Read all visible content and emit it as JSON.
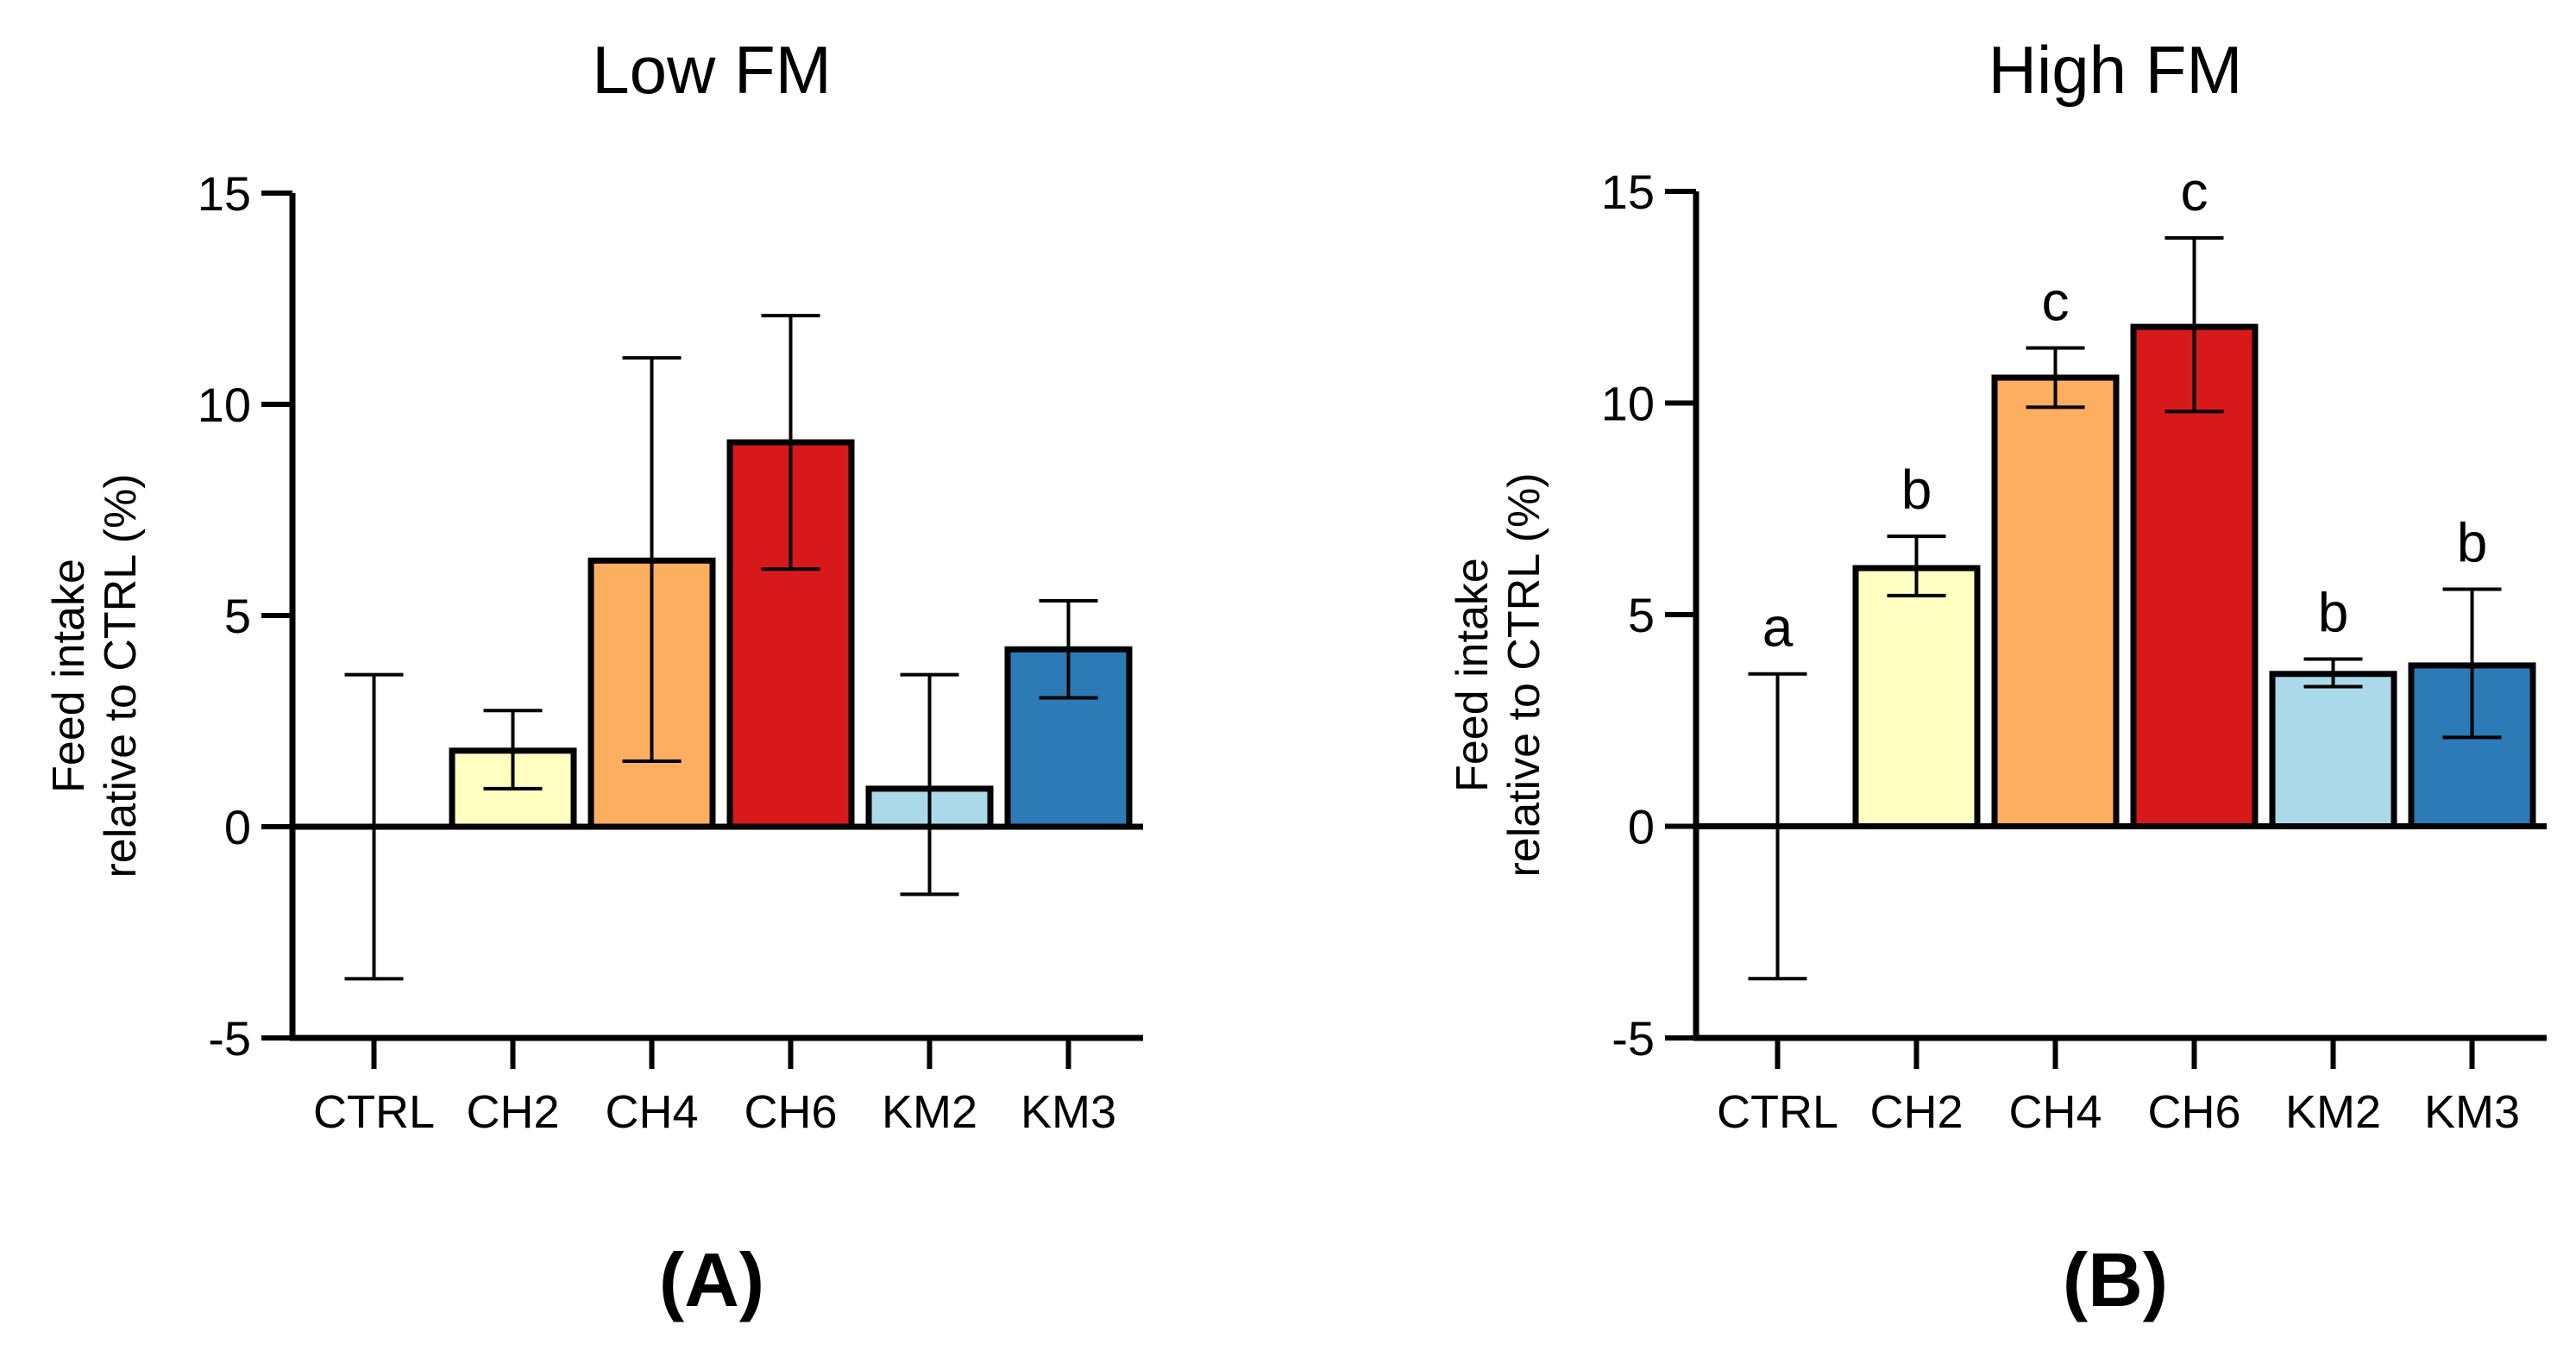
{
  "chart_data": [
    {
      "panel_label": "(A)",
      "type": "bar",
      "title": "Low FM",
      "ylabel_line1": "Feed intake",
      "ylabel_line2": "relative to CTRL (%)",
      "xlabel": "",
      "ylim": [
        -5,
        15
      ],
      "yticks": [
        -5,
        0,
        5,
        10,
        15
      ],
      "yticklabels": [
        "-5",
        "0",
        "5",
        "10",
        "15"
      ],
      "grid": false,
      "categories": [
        "CTRL",
        "CH2",
        "CH4",
        "CH6",
        "KM2",
        "KM3"
      ],
      "values": [
        0,
        1.8,
        6.3,
        9.1,
        0.9,
        4.2
      ],
      "error_low": [
        -3.6,
        0.9,
        1.55,
        6.1,
        -1.6,
        3.05
      ],
      "error_high": [
        3.6,
        2.75,
        11.1,
        12.1,
        3.6,
        5.35
      ],
      "colors": [
        "#ffffff",
        "#ffffc2",
        "#fdae61",
        "#d7191c",
        "#abd9e9",
        "#2c7bb6"
      ],
      "significance_letters": [
        "",
        "",
        "",
        "",
        "",
        ""
      ]
    },
    {
      "panel_label": "(B)",
      "type": "bar",
      "title": "High FM",
      "ylabel_line1": "Feed intake",
      "ylabel_line2": "relative to CTRL (%)",
      "xlabel": "",
      "ylim": [
        -5,
        15
      ],
      "yticks": [
        -5,
        0,
        5,
        10,
        15
      ],
      "yticklabels": [
        "-5",
        "0",
        "5",
        "10",
        "15"
      ],
      "grid": false,
      "categories": [
        "CTRL",
        "CH2",
        "CH4",
        "CH6",
        "KM2",
        "KM3"
      ],
      "values": [
        0,
        6.1,
        10.6,
        11.8,
        3.6,
        3.8
      ],
      "error_low": [
        -3.6,
        5.45,
        9.9,
        9.8,
        3.3,
        2.1
      ],
      "error_high": [
        3.6,
        6.85,
        11.3,
        13.9,
        3.95,
        5.6
      ],
      "colors": [
        "#ffffff",
        "#ffffc2",
        "#fdae61",
        "#d7191c",
        "#abd9e9",
        "#2c7bb6"
      ],
      "significance_letters": [
        "a",
        "b",
        "c",
        "c",
        "b",
        "b"
      ]
    }
  ]
}
